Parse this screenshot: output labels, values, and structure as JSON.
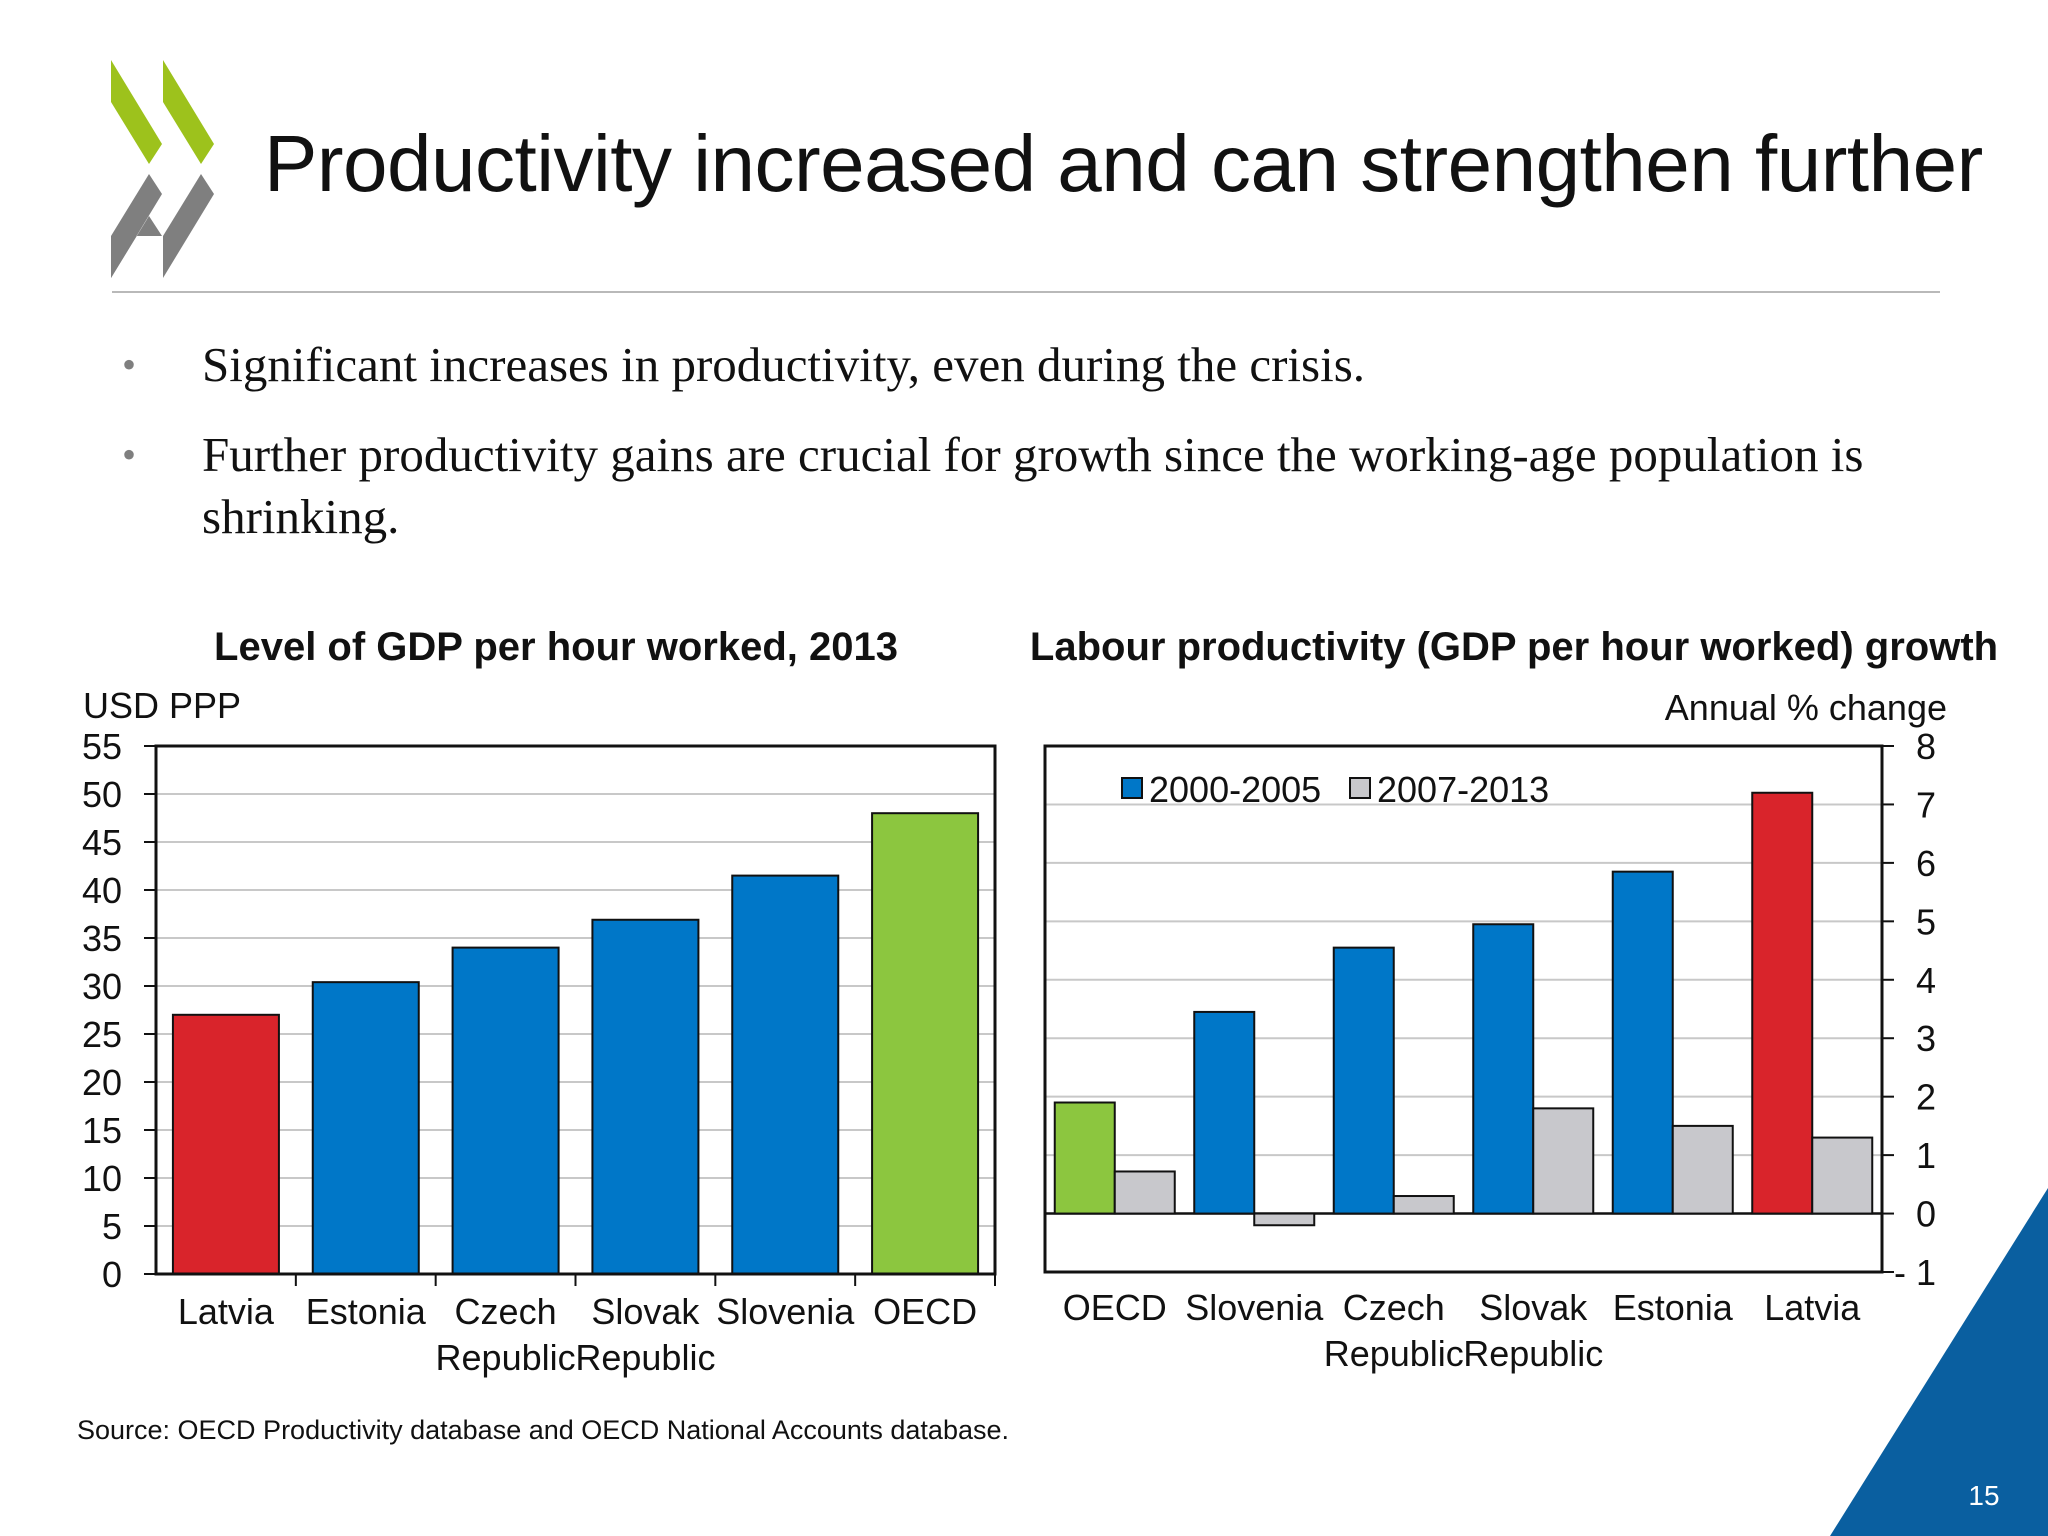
{
  "slide": {
    "title": "Productivity increased and can strengthen further",
    "bullets": [
      "Significant increases in productivity, even during the crisis.",
      "Further productivity gains are crucial for growth since the working-age population is shrinking."
    ],
    "source": "Source: OECD Productivity database and OECD National Accounts database.",
    "page_number": "15",
    "colors": {
      "logo_green": "#9dc21c",
      "logo_grey": "#7f7f7f",
      "corner_blue": "#0a5fa0"
    },
    "icons": [
      "oecd-logo-icon"
    ]
  },
  "chart_data": [
    {
      "type": "bar",
      "title": "Level of GDP per hour worked, 2013",
      "ylabel": "USD PPP",
      "ylim": [
        0,
        55
      ],
      "yticks": [
        0,
        5,
        10,
        15,
        20,
        25,
        30,
        35,
        40,
        45,
        50,
        55
      ],
      "grid": true,
      "categories": [
        [
          "Latvia"
        ],
        [
          "Estonia"
        ],
        [
          "Czech",
          "Republic"
        ],
        [
          "Slovak",
          "Republic"
        ],
        [
          "Slovenia"
        ],
        [
          "OECD"
        ]
      ],
      "values": [
        27,
        30.4,
        34,
        36.9,
        41.5,
        48
      ],
      "colors": [
        "#d9242b",
        "#0077c8",
        "#0077c8",
        "#0077c8",
        "#0077c8",
        "#8cc63f"
      ]
    },
    {
      "type": "bar",
      "title": "Labour productivity (GDP per hour worked) growth",
      "ylabel": "Annual % change",
      "ylim": [
        -1,
        8
      ],
      "yticks": [
        -1,
        0,
        1,
        2,
        3,
        4,
        5,
        6,
        7,
        8
      ],
      "ytick_labels": [
        "- 1",
        "0",
        "1",
        "2",
        "3",
        "4",
        "5",
        "6",
        "7",
        "8"
      ],
      "grid": true,
      "legend_position": "top-left",
      "categories": [
        [
          "OECD"
        ],
        [
          "Slovenia"
        ],
        [
          "Czech",
          "Republic"
        ],
        [
          "Slovak",
          "Republic"
        ],
        [
          "Estonia"
        ],
        [
          "Latvia"
        ]
      ],
      "series": [
        {
          "name": "2000-2005",
          "values": [
            1.9,
            3.45,
            4.55,
            4.95,
            5.85,
            7.2
          ],
          "color": "#0077c8",
          "bar_colors": [
            "#8cc63f",
            "#0077c8",
            "#0077c8",
            "#0077c8",
            "#0077c8",
            "#d9242b"
          ]
        },
        {
          "name": "2007-2013",
          "values": [
            0.72,
            -0.2,
            0.3,
            1.8,
            1.5,
            1.3
          ],
          "color": "#c8c8cc"
        }
      ]
    }
  ]
}
